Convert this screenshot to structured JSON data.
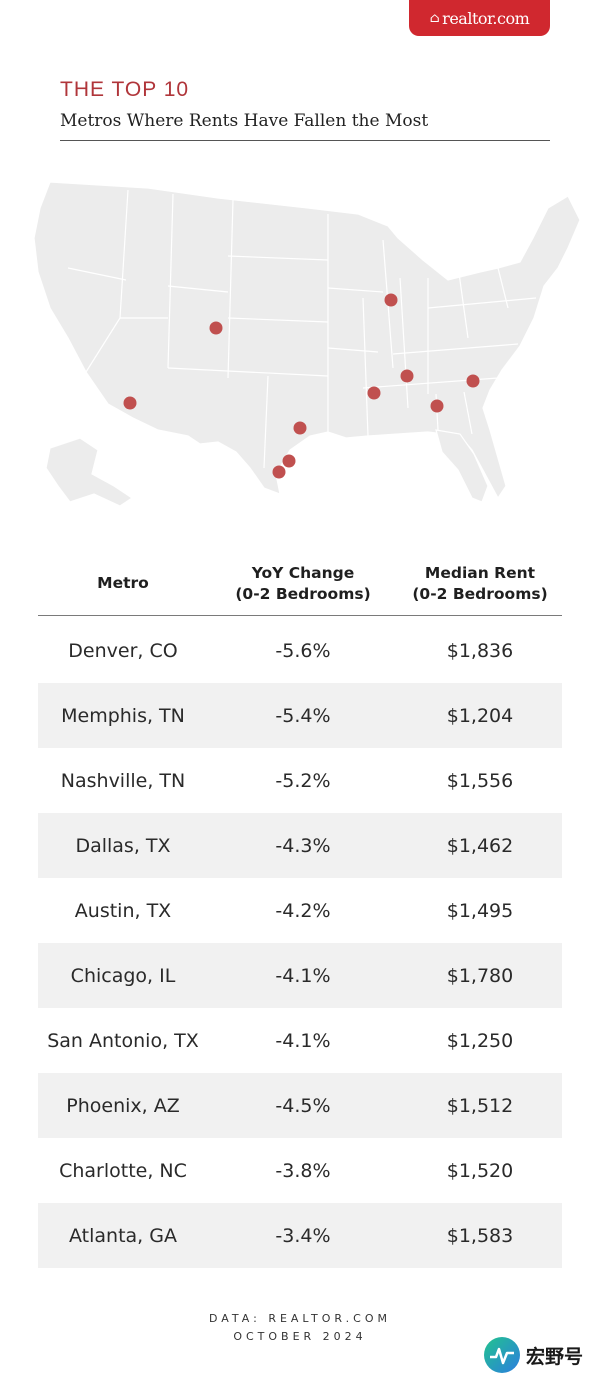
{
  "brand": {
    "logo_text": "realtor.com",
    "logo_icon": "house-icon",
    "color": "#d0282f"
  },
  "heading": {
    "top": "THE TOP 10",
    "subtitle": "Metros Where Rents Have Fallen the Most",
    "accent": "#b0353a"
  },
  "map": {
    "region": "Contiguous United States",
    "marker_color": "#c0504f"
  },
  "table": {
    "headers": {
      "metro": "Metro",
      "yoy_line1": "YoY Change",
      "yoy_line2": "(0-2 Bedrooms)",
      "rent_line1": "Median Rent",
      "rent_line2": "(0-2 Bedrooms)"
    },
    "rows": [
      {
        "metro": "Denver, CO",
        "yoy": "-5.6%",
        "rent": "$1,836"
      },
      {
        "metro": "Memphis, TN",
        "yoy": "-5.4%",
        "rent": "$1,204"
      },
      {
        "metro": "Nashville, TN",
        "yoy": "-5.2%",
        "rent": "$1,556"
      },
      {
        "metro": "Dallas, TX",
        "yoy": "-4.3%",
        "rent": "$1,462"
      },
      {
        "metro": "Austin, TX",
        "yoy": "-4.2%",
        "rent": "$1,495"
      },
      {
        "metro": "Chicago, IL",
        "yoy": "-4.1%",
        "rent": "$1,780"
      },
      {
        "metro": "San Antonio, TX",
        "yoy": "-4.1%",
        "rent": "$1,250"
      },
      {
        "metro": "Phoenix, AZ",
        "yoy": "-4.5%",
        "rent": "$1,512"
      },
      {
        "metro": "Charlotte, NC",
        "yoy": "-3.8%",
        "rent": "$1,520"
      },
      {
        "metro": "Atlanta, GA",
        "yoy": "-3.4%",
        "rent": "$1,583"
      }
    ]
  },
  "source": {
    "line1": "DATA: REALTOR.COM",
    "line2": "OCTOBER 2024"
  },
  "watermark": {
    "text": "宏野号",
    "icon": "pulse-logo-icon"
  }
}
